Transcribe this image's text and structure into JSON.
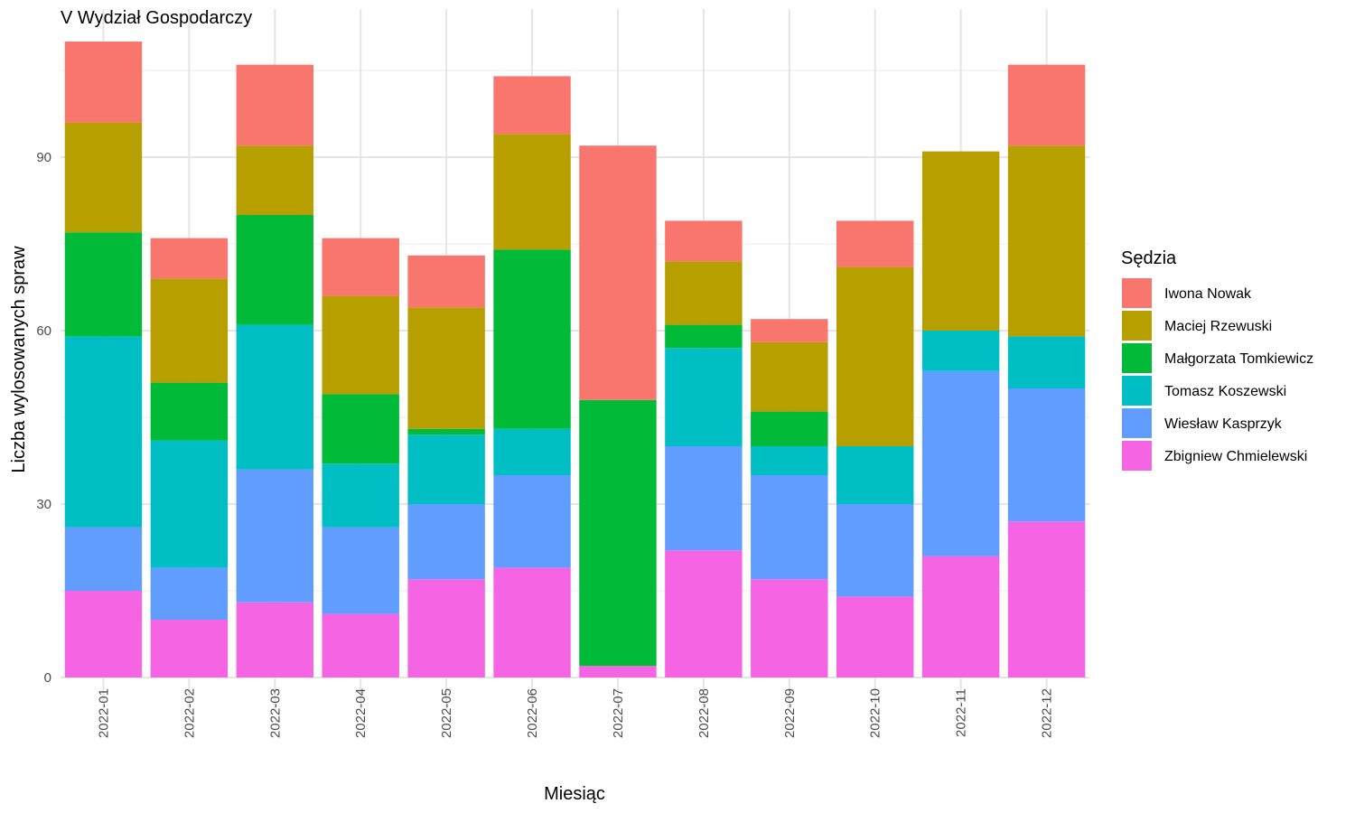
{
  "chart_data": {
    "type": "bar",
    "stacked": true,
    "title": "V Wydział Gospodarczy",
    "xlabel": "Miesiąc",
    "ylabel": "Liczba wylosowanych spraw",
    "ylim": [
      0,
      110
    ],
    "yticks": [
      0,
      30,
      60,
      90
    ],
    "grid": true,
    "legend_title": "Sędzia",
    "legend_position": "right",
    "categories": [
      "2022-01",
      "2022-02",
      "2022-03",
      "2022-04",
      "2022-05",
      "2022-06",
      "2022-07",
      "2022-08",
      "2022-09",
      "2022-10",
      "2022-11",
      "2022-12"
    ],
    "series": [
      {
        "name": "Iwona Nowak",
        "color": "#F8766D",
        "values": [
          14,
          7,
          14,
          10,
          9,
          10,
          44,
          7,
          4,
          8,
          0,
          14
        ]
      },
      {
        "name": "Maciej Rzewuski",
        "color": "#B79F00",
        "values": [
          19,
          18,
          12,
          17,
          21,
          20,
          0,
          11,
          12,
          31,
          31,
          33
        ]
      },
      {
        "name": "Małgorzata Tomkiewicz",
        "color": "#00BA38",
        "values": [
          18,
          10,
          19,
          12,
          1,
          31,
          46,
          4,
          6,
          0,
          0,
          0
        ]
      },
      {
        "name": "Tomasz Koszewski",
        "color": "#00BFC4",
        "values": [
          33,
          22,
          25,
          11,
          12,
          8,
          0,
          17,
          5,
          10,
          7,
          9
        ]
      },
      {
        "name": "Wiesław Kasprzyk",
        "color": "#619CFF",
        "values": [
          11,
          9,
          23,
          15,
          13,
          16,
          0,
          18,
          18,
          16,
          32,
          23
        ]
      },
      {
        "name": "Zbigniew Chmielewski",
        "color": "#F564E3",
        "values": [
          15,
          10,
          13,
          11,
          17,
          19,
          2,
          22,
          17,
          14,
          21,
          27
        ]
      }
    ]
  }
}
